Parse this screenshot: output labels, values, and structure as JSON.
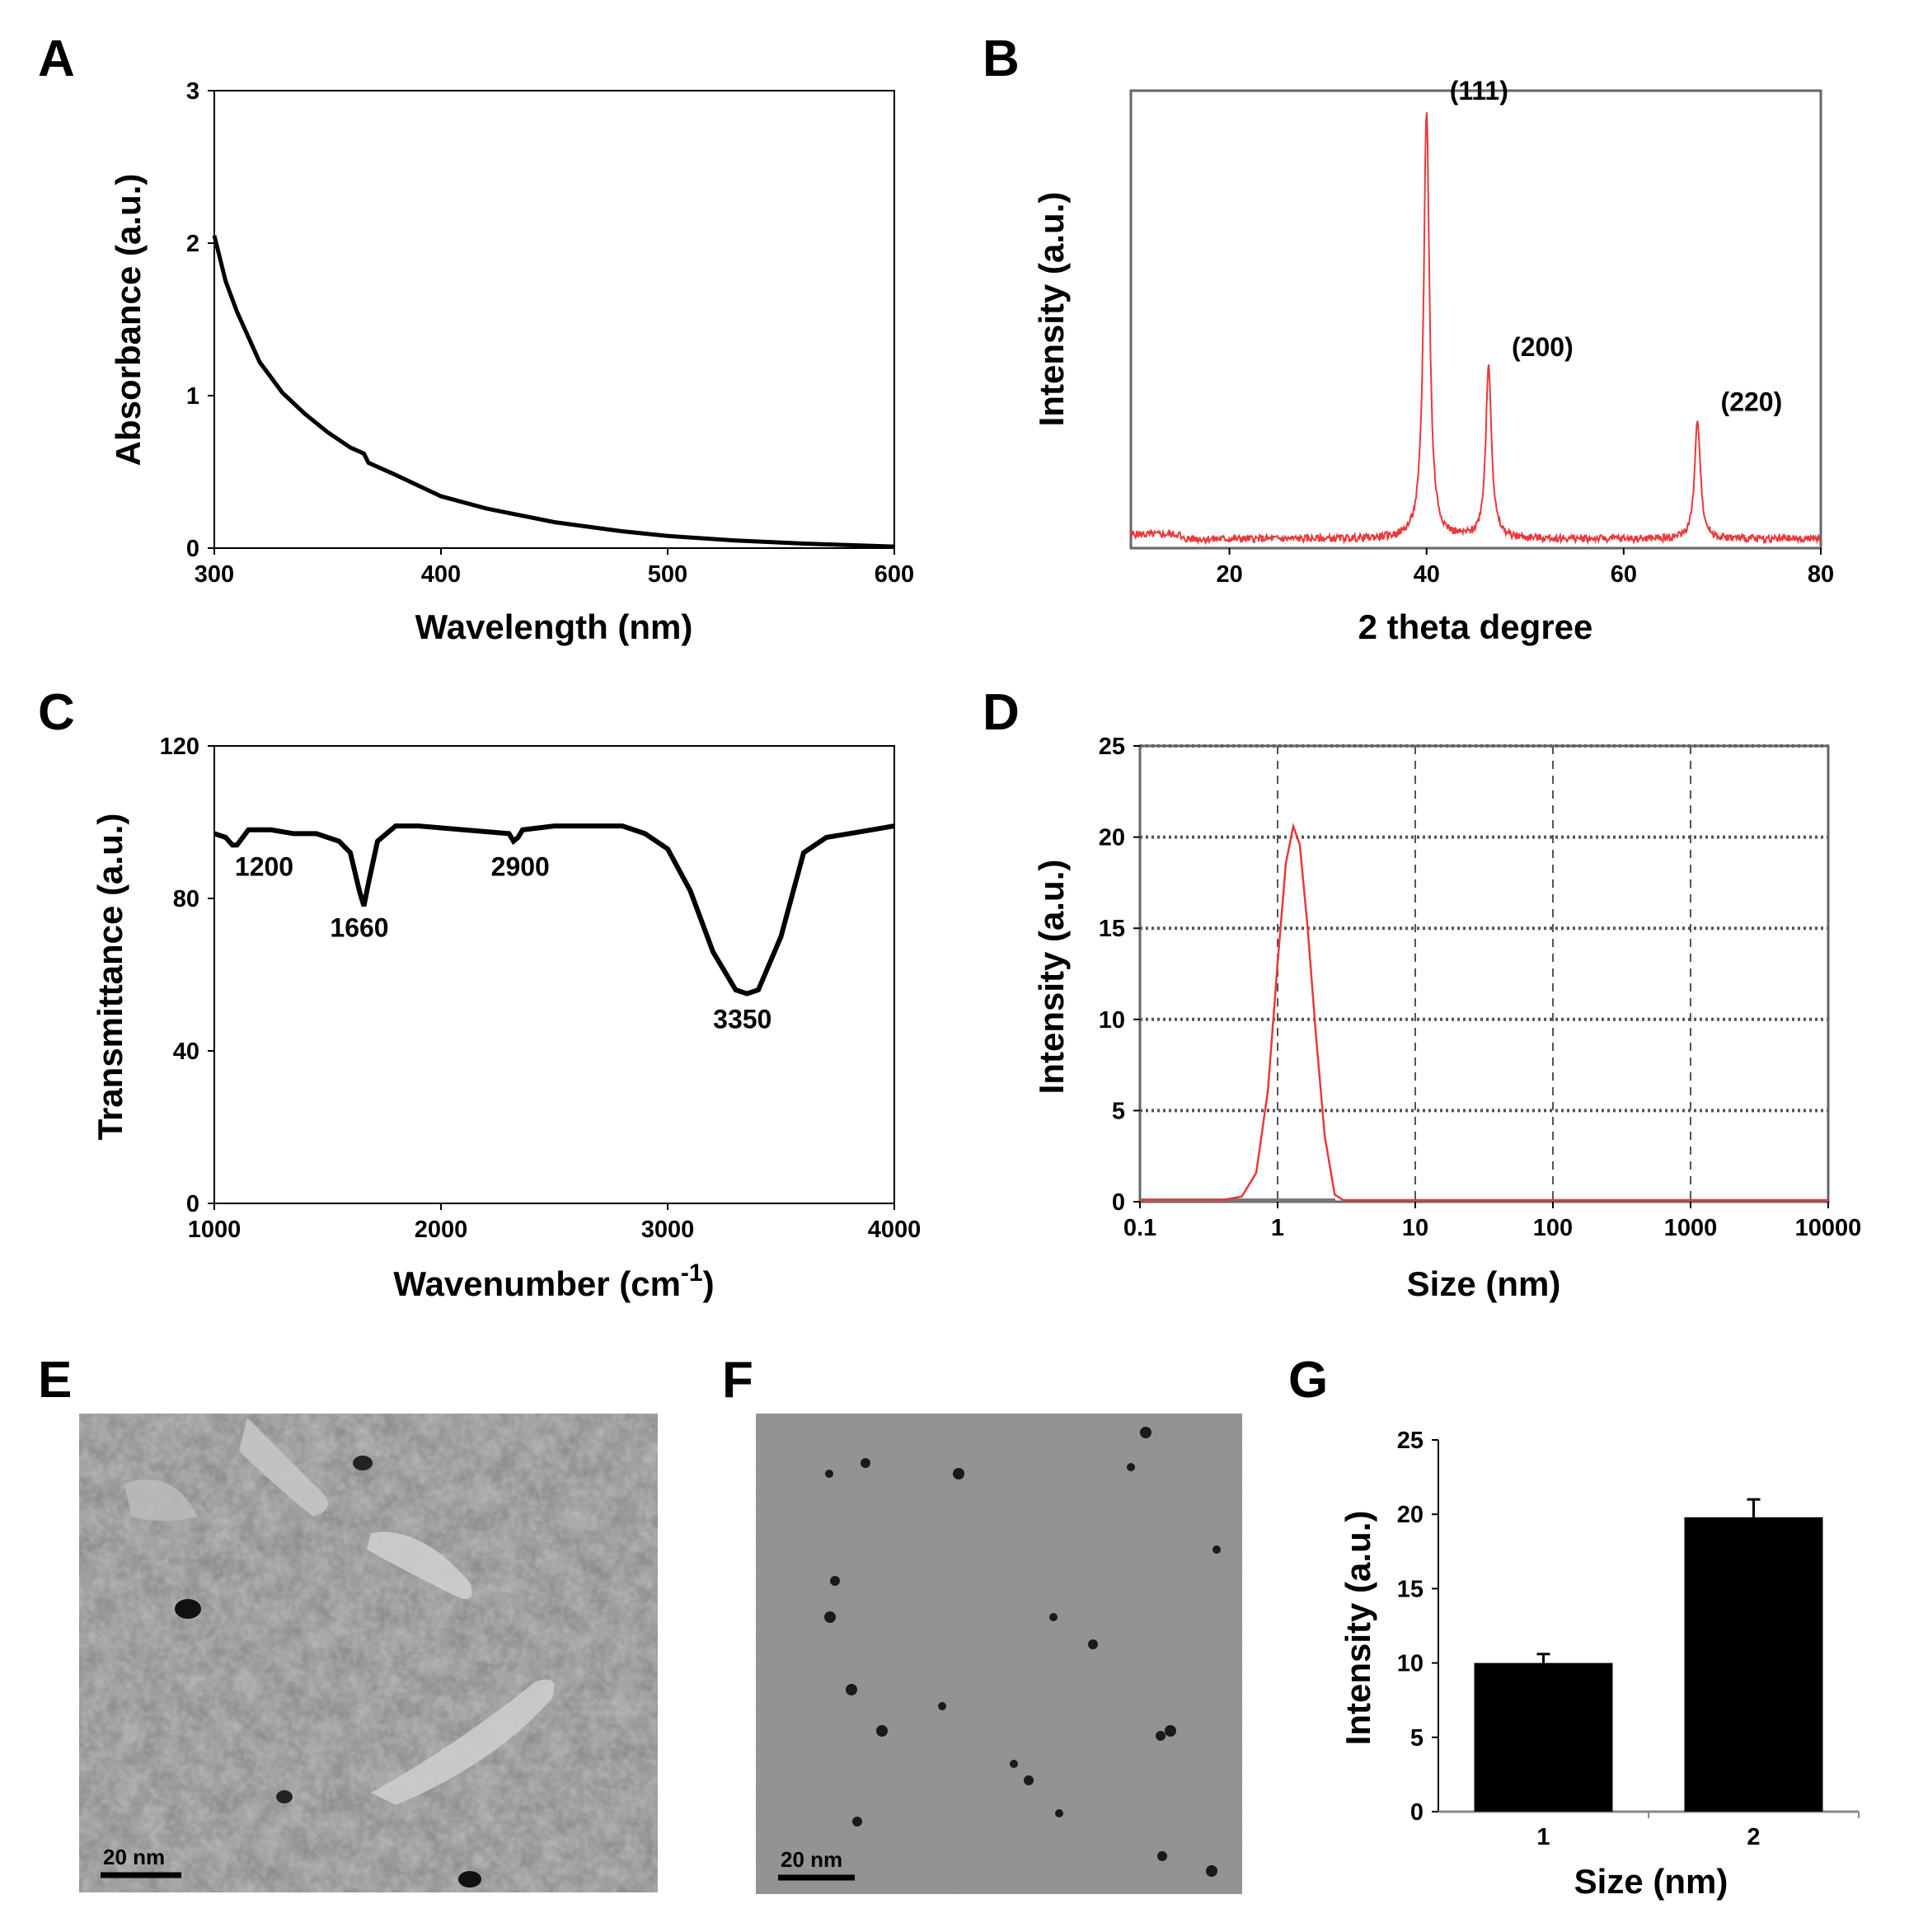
{
  "panels": {
    "A": "A",
    "B": "B",
    "C": "C",
    "D": "D",
    "E": "E",
    "F": "F",
    "G": "G"
  },
  "colors": {
    "black": "#000000",
    "red": "#e8393c",
    "grid": "#555555",
    "bar": "#000000",
    "sem_bg": "#8e8e8e",
    "tem_bg": "#969696"
  },
  "images": {
    "E": {
      "description_icon": "sem-micrograph",
      "scale_label": "20 nm"
    },
    "F": {
      "description_icon": "tem-micrograph",
      "scale_label": "20 nm"
    }
  },
  "chart_data": [
    {
      "id": "A",
      "type": "line",
      "xlabel": "Wavelength (nm)",
      "ylabel": "Absorbance (a.u.)",
      "xlim": [
        300,
        600
      ],
      "ylim": [
        0,
        3
      ],
      "xticks": [
        300,
        400,
        500,
        600
      ],
      "yticks": [
        0,
        1,
        2,
        3
      ],
      "series": [
        {
          "name": "absorbance",
          "x": [
            300,
            305,
            310,
            320,
            330,
            340,
            350,
            360,
            366,
            368,
            380,
            400,
            420,
            450,
            480,
            500,
            530,
            560,
            600
          ],
          "y": [
            2.05,
            1.75,
            1.55,
            1.22,
            1.02,
            0.88,
            0.76,
            0.66,
            0.62,
            0.56,
            0.48,
            0.34,
            0.26,
            0.17,
            0.11,
            0.08,
            0.05,
            0.03,
            0.01
          ]
        }
      ]
    },
    {
      "id": "B",
      "type": "line",
      "xlabel": "2 theta degree",
      "ylabel": "Intensity (a.u.)",
      "xlim": [
        10,
        80
      ],
      "ylim": [
        0,
        100
      ],
      "xticks": [
        20,
        40,
        60,
        80
      ],
      "yticks": [],
      "peaks": [
        {
          "x": 40,
          "height": 94,
          "label": "(111)"
        },
        {
          "x": 46.3,
          "height": 38,
          "label": "(200)"
        },
        {
          "x": 67.5,
          "height": 26,
          "label": "(220)"
        }
      ],
      "baseline": 2
    },
    {
      "id": "C",
      "type": "line",
      "xlabel": "Wavenumber (cm",
      "xlabel_sup": "-1",
      "xlabel_close": ")",
      "ylabel": "Transmittance (a.u.)",
      "xlim": [
        1000,
        4000
      ],
      "ylim": [
        0,
        120
      ],
      "xticks": [
        1000,
        2000,
        3000,
        4000
      ],
      "yticks": [
        0,
        40,
        80,
        120
      ],
      "series": [
        {
          "name": "transmittance",
          "x": [
            1000,
            1050,
            1080,
            1100,
            1150,
            1250,
            1350,
            1450,
            1550,
            1600,
            1640,
            1660,
            1680,
            1720,
            1800,
            1900,
            2100,
            2300,
            2320,
            2340,
            2360,
            2500,
            2800,
            2900,
            3000,
            3100,
            3200,
            3300,
            3350,
            3400,
            3500,
            3600,
            3700,
            3800,
            3900,
            4000
          ],
          "y": [
            97,
            96,
            94,
            94,
            98,
            98,
            97,
            97,
            95,
            92,
            82,
            78,
            84,
            95,
            99,
            99,
            98,
            97,
            95,
            96,
            98,
            99,
            99,
            97,
            93,
            82,
            66,
            56,
            55,
            56,
            70,
            92,
            96,
            97,
            98,
            99
          ]
        }
      ],
      "annotations": [
        {
          "x": 1220,
          "y": 86,
          "label": "1200"
        },
        {
          "x": 1640,
          "y": 70,
          "label": "1660"
        },
        {
          "x": 2350,
          "y": 86,
          "label": "2900"
        },
        {
          "x": 3330,
          "y": 46,
          "label": "3350"
        }
      ]
    },
    {
      "id": "D",
      "type": "line",
      "xscale": "log",
      "xlabel": "Size (nm)",
      "ylabel": "Intensity (a.u.)",
      "xlim": [
        0.1,
        10000
      ],
      "ylim": [
        0,
        25
      ],
      "xticks": [
        "0.1",
        "1",
        "10",
        "100",
        "1000",
        "10000"
      ],
      "yticks": [
        0,
        5,
        10,
        15,
        20,
        25
      ],
      "grid": true,
      "series": [
        {
          "name": "size distribution",
          "x": [
            0.1,
            0.4,
            0.55,
            0.7,
            0.85,
            1.0,
            1.15,
            1.3,
            1.45,
            1.65,
            1.9,
            2.2,
            2.6,
            3.0,
            10000
          ],
          "y": [
            0,
            0,
            0.2,
            1.5,
            6,
            13,
            18.5,
            20.5,
            19.5,
            15,
            9,
            3.5,
            0.3,
            0,
            0
          ]
        }
      ]
    },
    {
      "id": "G",
      "type": "bar",
      "xlabel": "Size (nm)",
      "ylabel": "Intensity (a.u.)",
      "categories": [
        "1",
        "2"
      ],
      "values": [
        10,
        19.8
      ],
      "errors": [
        0.6,
        1.2
      ],
      "ylim": [
        0,
        25
      ],
      "yticks": [
        0,
        5,
        10,
        15,
        20,
        25
      ]
    }
  ]
}
